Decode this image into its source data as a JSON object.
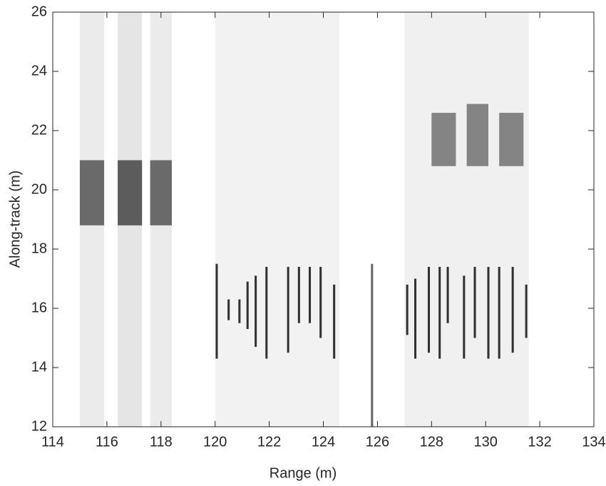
{
  "chart_data": {
    "type": "heatmap",
    "xlabel": "Range (m)",
    "ylabel": "Along-track (m)",
    "xlim": [
      114,
      134
    ],
    "ylim": [
      12,
      26
    ],
    "xticks": [
      114,
      116,
      118,
      120,
      122,
      124,
      126,
      128,
      130,
      132,
      134
    ],
    "yticks": [
      12,
      14,
      16,
      18,
      20,
      22,
      24,
      26
    ],
    "color": "#000000",
    "blocks": [
      {
        "x": [
          115,
          115.9
        ],
        "y": [
          12,
          26
        ],
        "level": 0.08
      },
      {
        "x": [
          116.4,
          117.3
        ],
        "y": [
          12,
          26
        ],
        "level": 0.1
      },
      {
        "x": [
          117.6,
          118.4
        ],
        "y": [
          12,
          26
        ],
        "level": 0.08
      },
      {
        "x": [
          120,
          124.6
        ],
        "y": [
          12,
          26
        ],
        "level": 0.05
      },
      {
        "x": [
          127,
          131.6
        ],
        "y": [
          12,
          26
        ],
        "level": 0.06
      },
      {
        "x": [
          115,
          115.9
        ],
        "y": [
          18.8,
          21
        ],
        "level": 0.55
      },
      {
        "x": [
          116.4,
          117.3
        ],
        "y": [
          18.8,
          21
        ],
        "level": 0.6
      },
      {
        "x": [
          117.6,
          118.4
        ],
        "y": [
          18.8,
          21
        ],
        "level": 0.55
      },
      {
        "x": [
          128,
          128.9
        ],
        "y": [
          20.8,
          22.6
        ],
        "level": 0.45
      },
      {
        "x": [
          129.3,
          130.1
        ],
        "y": [
          20.8,
          22.9
        ],
        "level": 0.45
      },
      {
        "x": [
          130.5,
          131.4
        ],
        "y": [
          20.8,
          22.6
        ],
        "level": 0.45
      },
      {
        "x": [
          120.02,
          120.1
        ],
        "y": [
          14.3,
          17.5
        ],
        "level": 0.8
      },
      {
        "x": [
          120.46,
          120.54
        ],
        "y": [
          15.6,
          16.3
        ],
        "level": 0.8
      },
      {
        "x": [
          120.86,
          120.94
        ],
        "y": [
          15.5,
          16.3
        ],
        "level": 0.8
      },
      {
        "x": [
          121.16,
          121.24
        ],
        "y": [
          15.3,
          16.9
        ],
        "level": 0.8
      },
      {
        "x": [
          121.46,
          121.54
        ],
        "y": [
          14.7,
          17.1
        ],
        "level": 0.8
      },
      {
        "x": [
          121.86,
          121.94
        ],
        "y": [
          14.3,
          17.4
        ],
        "level": 0.8
      },
      {
        "x": [
          122.66,
          122.74
        ],
        "y": [
          14.5,
          17.4
        ],
        "level": 0.8
      },
      {
        "x": [
          123.06,
          123.14
        ],
        "y": [
          15.5,
          17.4
        ],
        "level": 0.8
      },
      {
        "x": [
          123.46,
          123.54
        ],
        "y": [
          15.5,
          17.4
        ],
        "level": 0.8
      },
      {
        "x": [
          123.86,
          123.94
        ],
        "y": [
          15,
          17.4
        ],
        "level": 0.8
      },
      {
        "x": [
          124.36,
          124.44
        ],
        "y": [
          14.3,
          16.8
        ],
        "level": 0.8
      },
      {
        "x": [
          125.76,
          125.84
        ],
        "y": [
          12,
          17.5
        ],
        "level": 0.6
      },
      {
        "x": [
          127.06,
          127.14
        ],
        "y": [
          15.1,
          16.8
        ],
        "level": 0.8
      },
      {
        "x": [
          127.36,
          127.44
        ],
        "y": [
          14.3,
          17
        ],
        "level": 0.8
      },
      {
        "x": [
          127.86,
          127.94
        ],
        "y": [
          14.5,
          17.4
        ],
        "level": 0.8
      },
      {
        "x": [
          128.26,
          128.34
        ],
        "y": [
          14.3,
          17.4
        ],
        "level": 0.8
      },
      {
        "x": [
          128.56,
          128.64
        ],
        "y": [
          15.5,
          17.4
        ],
        "level": 0.8
      },
      {
        "x": [
          129.16,
          129.24
        ],
        "y": [
          14.3,
          17.1
        ],
        "level": 0.8
      },
      {
        "x": [
          129.56,
          129.64
        ],
        "y": [
          15,
          17.4
        ],
        "level": 0.8
      },
      {
        "x": [
          130.06,
          130.14
        ],
        "y": [
          14.3,
          17.4
        ],
        "level": 0.8
      },
      {
        "x": [
          130.46,
          130.54
        ],
        "y": [
          14.3,
          17.4
        ],
        "level": 0.8
      },
      {
        "x": [
          130.96,
          131.04
        ],
        "y": [
          14.5,
          17.4
        ],
        "level": 0.8
      },
      {
        "x": [
          131.46,
          131.54
        ],
        "y": [
          15,
          16.8
        ],
        "level": 0.8
      }
    ]
  }
}
